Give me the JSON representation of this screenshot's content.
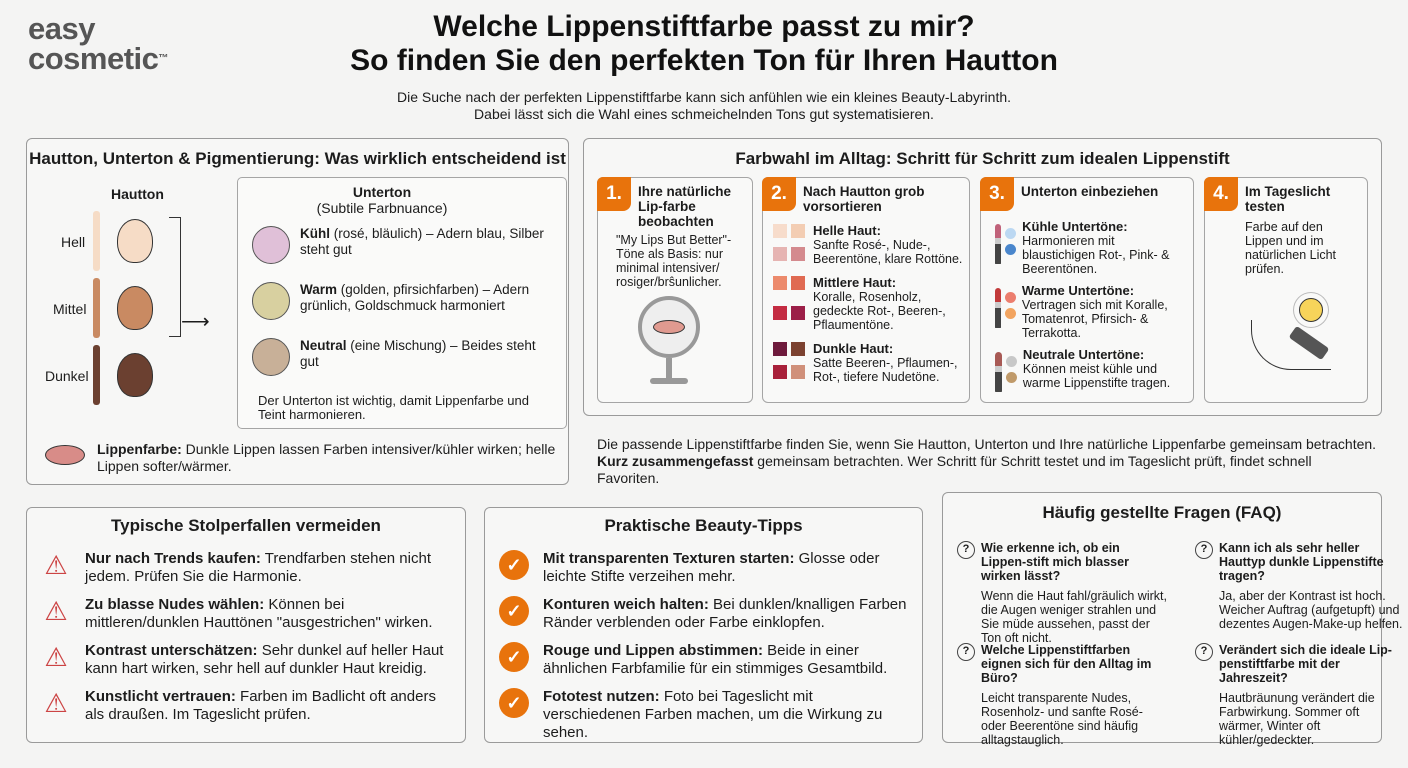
{
  "logo": {
    "line1": "easy",
    "line2": "cosmetic",
    "tm": "™"
  },
  "header": {
    "title1": "Welche Lippenstiftfarbe passt zu mir?",
    "title2": "So finden Sie den perfekten Ton für Ihren Hautton",
    "sub1": "Die Suche nach der perfekten Lippenstiftfarbe kann sich anfühlen wie ein kleines Beauty-Labyrinth.",
    "sub2": "Dabei lässt sich die Wahl eines schmeichelnden Tons gut systematisieren."
  },
  "skin": {
    "title": "Hautton, Unterton & Pigmentierung: Was wirklich entscheidend ist",
    "col": "Hautton",
    "tones": [
      {
        "label": "Hell",
        "color": "#f6dcc6"
      },
      {
        "label": "Mittel",
        "color": "#c98a62"
      },
      {
        "label": "Dunkel",
        "color": "#6b4030"
      }
    ],
    "under_title": "Unterton",
    "under_sub": "(Subtile Farbnuance)",
    "under": [
      {
        "b": "Kühl",
        "t": " (rosé, bläulich) – Adern blau, Silber steht gut"
      },
      {
        "b": "Warm",
        "t": " (golden, pfirsichfarben) – Adern grünlich, Goldschmuck harmoniert"
      },
      {
        "b": "Neutral",
        "t": " (eine Mischung) – Beides steht gut"
      }
    ],
    "under_note": "Der Unterton ist wichtig, damit Lippenfarbe und Teint harmonieren.",
    "lip_b": "Lippenfarbe:",
    "lip_t": " Dunkle Lippen lassen Farben intensiver/kühler wirken; helle Lippen softer/wärmer."
  },
  "steps": {
    "title": "Farbwahl im Alltag: Schritt für Schritt zum idealen Lippenstift",
    "accent": "#e8730c",
    "s1": {
      "n": "1.",
      "t": "Ihre natürliche Lip-farbe beobachten",
      "txt": "\"My Lips But Better\"-Töne als Basis: nur minimal intensiver/ rosiger/brŝunlicher."
    },
    "s2": {
      "n": "2.",
      "t": "Nach Hautton grob vorsortieren",
      "groups": [
        {
          "b": "Helle Haut:",
          "t": "Sanfte Rosé-, Nude-, Beerentöne, klare Rottöne.",
          "c": [
            "#f7dccb",
            "#f3cdb3",
            "#e6b4b2",
            "#d48a8e"
          ]
        },
        {
          "b": "Mittlere Haut:",
          "t": "Koralle, Rosenholz, gedeckte Rot-, Beeren-, Pflaumentöne.",
          "c": [
            "#ec8a6c",
            "#e06a52",
            "#c42c42",
            "#9c1f48"
          ]
        },
        {
          "b": "Dunkle Haut:",
          "t": "Satte Beeren-, Pflaumen-, Rot-, tiefere Nudetöne.",
          "c": [
            "#6e1a3c",
            "#7c4230",
            "#a8203a",
            "#d0907a"
          ]
        }
      ]
    },
    "s3": {
      "n": "3.",
      "t": "Unterton einbeziehen",
      "groups": [
        {
          "b": "Kühle Untertöne:",
          "t": "Harmonieren mit blaustichigen Rot-, Pink- & Beerentönen.",
          "c": [
            "#c0627a",
            "#bcd8f2",
            "#4a86cc"
          ]
        },
        {
          "b": "Warme Untertöne:",
          "t": "Vertragen sich mit Koralle, Tomatenrot, Pfirsich- & Terrakotta.",
          "c": [
            "#c23a3a",
            "#ec7e6e",
            "#f2a460"
          ]
        },
        {
          "b": "Neutrale Untertöne:",
          "t": "Können meist kühle und warme Lippenstifte tragen.",
          "c": [
            "#a85a55",
            "#c8c8c8",
            "#c09a6a"
          ]
        }
      ]
    },
    "s4": {
      "n": "4.",
      "t": "Im Tageslicht testen",
      "txt": "Farbe auf den Lippen und im natürlichen Licht prüfen."
    },
    "sum1": "Die passende Lippenstiftfarbe finden Sie, wenn Sie Hautton, Unterton und Ihre natürliche Lippenfarbe gemeinsam betrachten.",
    "sum2b": "Kurz zusammengefasst",
    "sum2": " gemeinsam betrachten. Wer Schritt für Schritt testet und im Tageslicht prüft, findet schnell Favoriten."
  },
  "pitfalls": {
    "title": "Typische Stolperfallen vermeiden",
    "items": [
      {
        "b": "Nur nach Trends kaufen:",
        "t": " Trendfarben stehen nicht jedem. Prüfen Sie die Harmonie."
      },
      {
        "b": "Zu blasse Nudes wählen:",
        "t": " Können bei mittleren/dunklen Hauttönen \"ausgestrichen\" wirken."
      },
      {
        "b": "Kontrast unterschätzen:",
        "t": " Sehr dunkel auf heller Haut kann hart wirken, sehr hell auf dunkler Haut kreidig."
      },
      {
        "b": "Kunstlicht vertrauen:",
        "t": " Farben im Badlicht oft anders als draußen. Im Tageslicht prüfen."
      }
    ]
  },
  "tips": {
    "title": "Praktische Beauty-Tipps",
    "items": [
      {
        "b": "Mit transparenten Texturen starten:",
        "t": " Glosse oder leichte Stifte verzeihen mehr."
      },
      {
        "b": "Konturen weich halten:",
        "t": " Bei dunklen/knalligen Farben Ränder verblenden oder Farbe einklopfen."
      },
      {
        "b": "Rouge und Lippen abstimmen:",
        "t": " Beide in einer ähnlichen Farbfamilie für ein stimmiges Gesamtbild."
      },
      {
        "b": "Fototest nutzen:",
        "t": " Foto bei Tageslicht mit verschiedenen Farben machen, um die Wirkung zu sehen."
      }
    ]
  },
  "faq": {
    "title": "Häufig gestellte Fragen (FAQ)",
    "items": [
      {
        "q": "Wie erkenne ich, ob ein Lippen-stift mich blasser wirken lässt?",
        "a": "Wenn die Haut fahl/gräulich wirkt, die Augen weniger strahlen und Sie müde aussehen, passt der Ton oft nicht."
      },
      {
        "q": "Kann ich als sehr heller Hauttyp dunkle Lippenstifte tragen?",
        "a": "Ja, aber der Kontrast ist hoch. Weicher Auftrag (aufgetupft) und dezentes Augen-Make-up helfen."
      },
      {
        "q": "Welche Lippenstiftfarben eignen sich für den Alltag im Büro?",
        "a": "Leicht transparente Nudes, Rosenholz- und sanfte Rosé- oder Beerentöne sind häufig alltagstauglich."
      },
      {
        "q": "Verändert sich die ideale Lip-penstiftfarbe mit der Jahreszeit?",
        "a": "Hautbräunung verändert die Farbwirkung. Sommer oft wärmer, Winter oft kühler/gedeckter."
      }
    ]
  }
}
